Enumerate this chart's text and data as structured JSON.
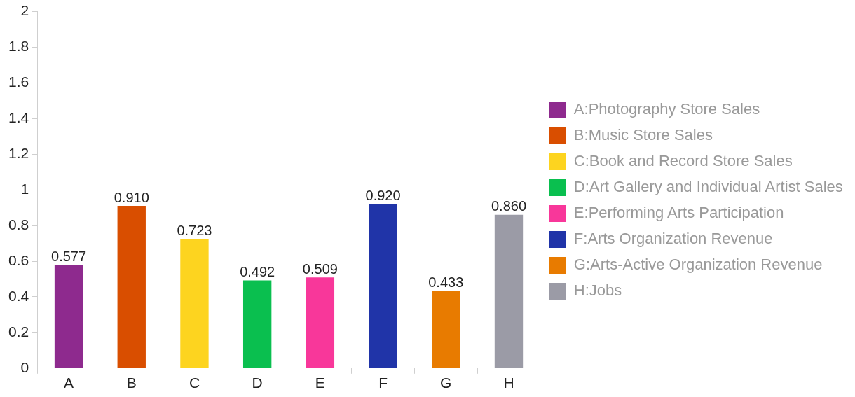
{
  "chart_data": {
    "type": "bar",
    "categories": [
      "A",
      "B",
      "C",
      "D",
      "E",
      "F",
      "G",
      "H"
    ],
    "series": [
      {
        "name": "A:Photography Store Sales",
        "color": "#8e2a8e",
        "values": [
          0.577,
          null,
          null,
          null,
          null,
          null,
          null,
          null
        ],
        "value_labels": [
          "0.577",
          null,
          null,
          null,
          null,
          null,
          null,
          null
        ]
      },
      {
        "name": "B:Music Store Sales",
        "color": "#d94e00",
        "values": [
          null,
          0.91,
          null,
          null,
          null,
          null,
          null,
          null
        ],
        "value_labels": [
          null,
          "0.910",
          null,
          null,
          null,
          null,
          null,
          null
        ]
      },
      {
        "name": "C:Book and Record Store Sales",
        "color": "#fdd41f",
        "values": [
          null,
          null,
          0.723,
          null,
          null,
          null,
          null,
          null
        ],
        "value_labels": [
          null,
          null,
          "0.723",
          null,
          null,
          null,
          null,
          null
        ]
      },
      {
        "name": "D:Art Gallery and Individual Artist Sales",
        "color": "#0abf4f",
        "values": [
          null,
          null,
          null,
          0.492,
          null,
          null,
          null,
          null
        ],
        "value_labels": [
          null,
          null,
          null,
          "0.492",
          null,
          null,
          null,
          null
        ]
      },
      {
        "name": "E:Performing Arts Participation",
        "color": "#f8379a",
        "values": [
          null,
          null,
          null,
          null,
          0.509,
          null,
          null,
          null
        ],
        "value_labels": [
          null,
          null,
          null,
          null,
          "0.509",
          null,
          null,
          null
        ]
      },
      {
        "name": "F:Arts Organization Revenue",
        "color": "#2034a8",
        "values": [
          null,
          null,
          null,
          null,
          null,
          0.92,
          null,
          null
        ],
        "value_labels": [
          null,
          null,
          null,
          null,
          null,
          "0.920",
          null,
          null
        ]
      },
      {
        "name": "G:Arts-Active Organization Revenue",
        "color": "#e87b00",
        "values": [
          null,
          null,
          null,
          null,
          null,
          null,
          0.433,
          null
        ],
        "value_labels": [
          null,
          null,
          null,
          null,
          null,
          null,
          "0.433",
          null
        ]
      },
      {
        "name": "H:Jobs",
        "color": "#9b9ba6",
        "values": [
          null,
          null,
          null,
          null,
          null,
          null,
          null,
          0.86
        ],
        "value_labels": [
          null,
          null,
          null,
          null,
          null,
          null,
          null,
          "0.860"
        ]
      }
    ],
    "ylim": [
      0,
      2
    ],
    "yticks": [
      0,
      0.2,
      0.4,
      0.6,
      0.8,
      1,
      1.2,
      1.4,
      1.6,
      1.8,
      2
    ],
    "legend": "right"
  }
}
